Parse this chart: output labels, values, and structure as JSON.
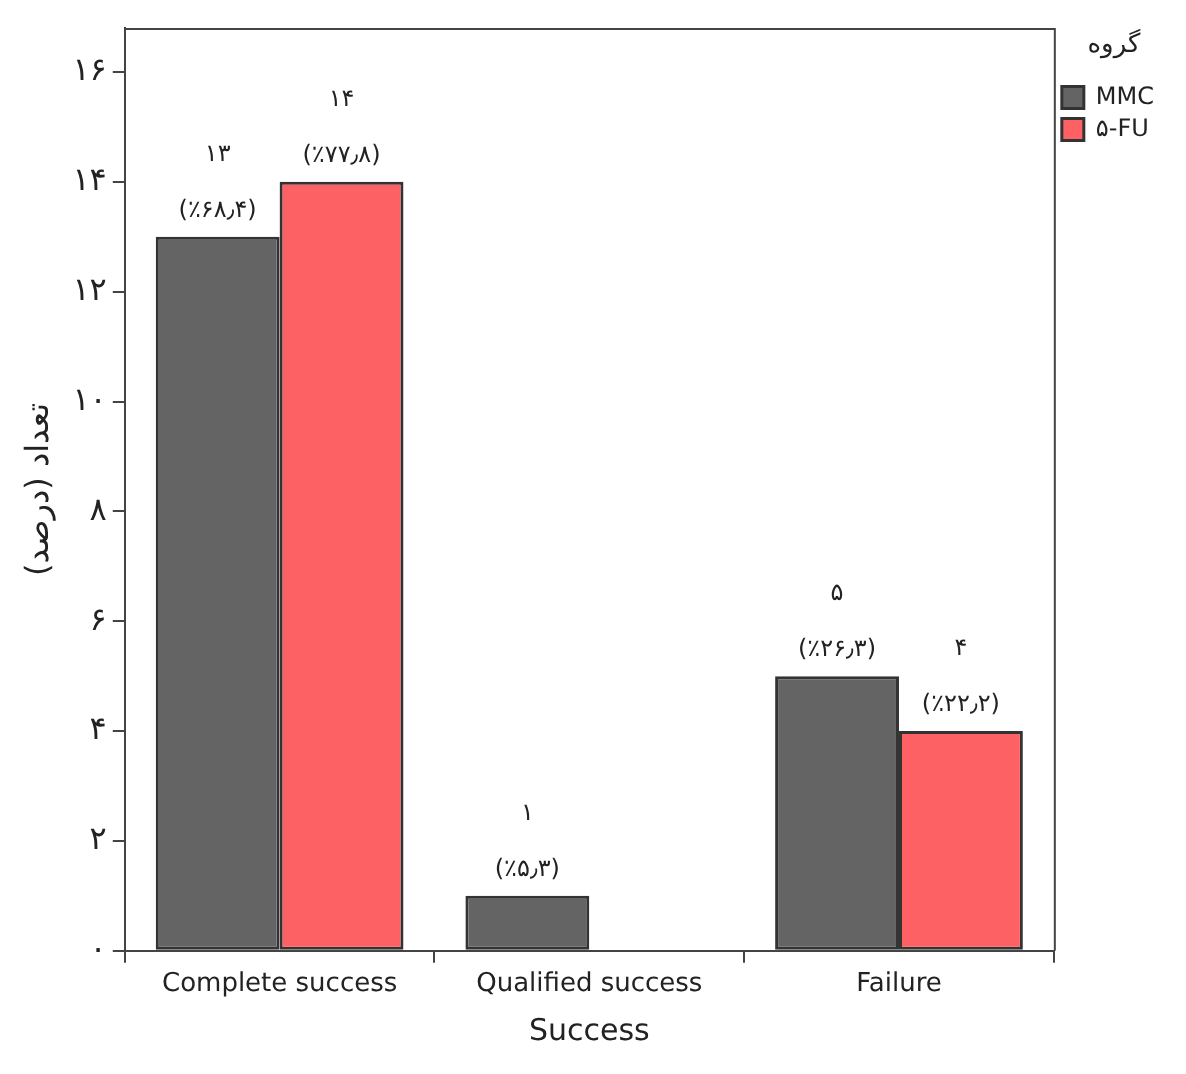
{
  "chart_data": {
    "type": "bar",
    "xlabel": "Success",
    "ylabel": "تعداد (درصد)",
    "legend_title": "گروه",
    "legend": "top right",
    "categories": [
      "Complete success",
      "Qualified success",
      "Failure"
    ],
    "series": [
      {
        "name": "MMC",
        "color": "#646464",
        "values": [
          13,
          1,
          5
        ],
        "value_labels": [
          "۱۳\n(٪۶۸٫۴)",
          "۱\n(٪۵٫۳)",
          "۵\n(٪۲۶٫۳)"
        ]
      },
      {
        "name": "۵-FU",
        "color": "#fe6163",
        "values": [
          14,
          0,
          4
        ],
        "value_labels": [
          "۱۴\n(٪۷۷٫۸)",
          null,
          "۴\n(٪۲۲٫۲)"
        ]
      }
    ],
    "ylim": [
      0,
      16.8
    ],
    "yticks": [
      {
        "value": 0,
        "label": "۰"
      },
      {
        "value": 2,
        "label": "۲"
      },
      {
        "value": 4,
        "label": "۴"
      },
      {
        "value": 6,
        "label": "۶"
      },
      {
        "value": 8,
        "label": "۸"
      },
      {
        "value": 10,
        "label": "۱۰"
      },
      {
        "value": 12,
        "label": "۱۲"
      },
      {
        "value": 14,
        "label": "۱۴"
      },
      {
        "value": 16,
        "label": "۱۶"
      }
    ],
    "grid": false
  }
}
